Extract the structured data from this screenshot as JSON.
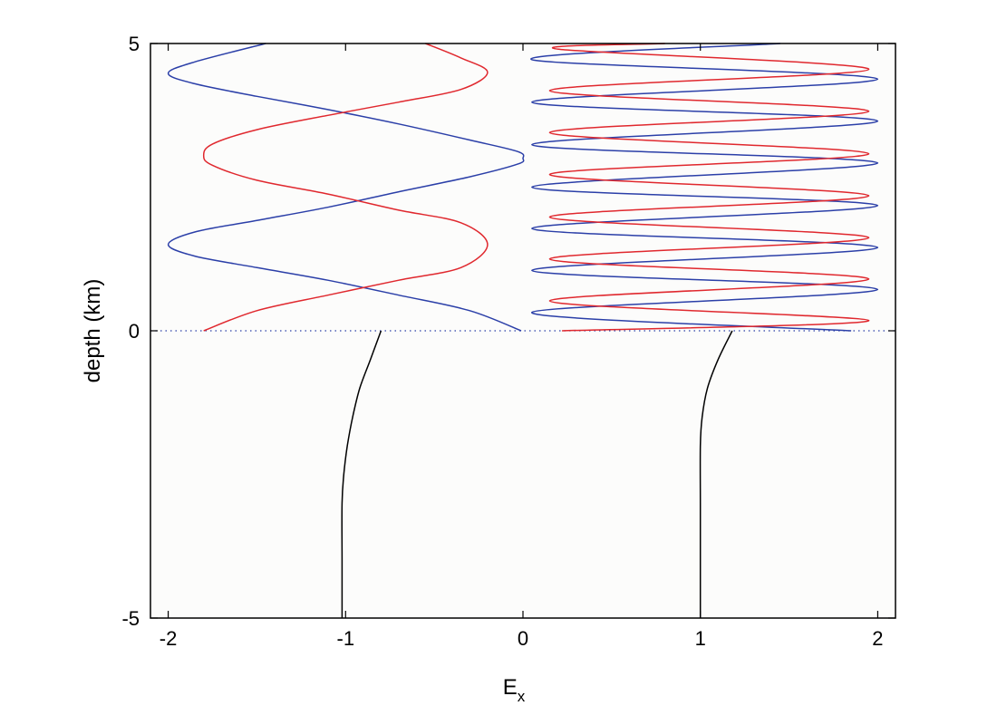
{
  "chart_data": {
    "type": "line",
    "title": "",
    "xlabel": "E",
    "xlabel_subscript": "x",
    "ylabel": "depth (km)",
    "xlim": [
      -2.1,
      2.1
    ],
    "ylim": [
      -5,
      5
    ],
    "xticks": [
      -2,
      -1,
      0,
      1,
      2
    ],
    "xtick_labels": [
      "-2",
      "-1",
      "0",
      "1",
      "2"
    ],
    "yticks": [
      -5,
      0,
      5
    ],
    "ytick_labels": [
      "-5",
      "0",
      "5"
    ],
    "grid": false,
    "legend": "none",
    "colors": {
      "blue": "#2b3fa8",
      "red": "#e0282e",
      "black": "#000000",
      "axes_bg": "#fcfcfb"
    },
    "reference_line": {
      "y": 0,
      "style": "dotted",
      "color": "#2b3fa8"
    },
    "series": [
      {
        "color": "#2b3fa8",
        "points": [
          [
            -0.01,
            0.0
          ],
          [
            -0.3,
            0.35
          ],
          [
            -0.7,
            0.62
          ],
          [
            -1.1,
            0.88
          ],
          [
            -1.5,
            1.1
          ],
          [
            -1.85,
            1.3
          ],
          [
            -2.0,
            1.5
          ],
          [
            -1.85,
            1.72
          ],
          [
            -1.5,
            1.92
          ],
          [
            -1.1,
            2.15
          ],
          [
            -0.7,
            2.42
          ],
          [
            -0.3,
            2.68
          ],
          [
            -0.03,
            2.9
          ],
          [
            0.0,
            3.0
          ],
          [
            -0.03,
            3.12
          ],
          [
            -0.3,
            3.32
          ],
          [
            -0.7,
            3.6
          ],
          [
            -1.1,
            3.85
          ],
          [
            -1.5,
            4.08
          ],
          [
            -1.85,
            4.3
          ],
          [
            -2.0,
            4.48
          ],
          [
            -1.85,
            4.68
          ],
          [
            -1.45,
            5.0
          ]
        ]
      },
      {
        "color": "#e0282e",
        "points": [
          [
            -1.8,
            0.0
          ],
          [
            -1.5,
            0.35
          ],
          [
            -1.1,
            0.62
          ],
          [
            -0.7,
            0.88
          ],
          [
            -0.35,
            1.1
          ],
          [
            -0.2,
            1.5
          ],
          [
            -0.35,
            1.88
          ],
          [
            -0.7,
            2.1
          ],
          [
            -1.1,
            2.38
          ],
          [
            -1.5,
            2.62
          ],
          [
            -1.75,
            2.88
          ],
          [
            -1.8,
            3.05
          ],
          [
            -1.75,
            3.25
          ],
          [
            -1.5,
            3.5
          ],
          [
            -1.1,
            3.75
          ],
          [
            -0.7,
            3.98
          ],
          [
            -0.35,
            4.2
          ],
          [
            -0.2,
            4.5
          ],
          [
            -0.35,
            4.75
          ],
          [
            -0.55,
            5.0
          ]
        ]
      },
      {
        "color": "#2b3fa8",
        "points": [
          [
            1.85,
            0.0
          ],
          [
            0.05,
            0.32
          ],
          [
            2.0,
            0.72
          ],
          [
            0.05,
            1.05
          ],
          [
            2.0,
            1.45
          ],
          [
            0.05,
            1.78
          ],
          [
            2.0,
            2.18
          ],
          [
            0.05,
            2.5
          ],
          [
            2.0,
            2.92
          ],
          [
            0.05,
            3.24
          ],
          [
            2.0,
            3.65
          ],
          [
            0.05,
            3.98
          ],
          [
            2.0,
            4.38
          ],
          [
            0.05,
            4.72
          ],
          [
            1.45,
            5.0
          ]
        ]
      },
      {
        "color": "#e0282e",
        "points": [
          [
            0.22,
            0.0
          ],
          [
            1.95,
            0.18
          ],
          [
            0.15,
            0.52
          ],
          [
            1.95,
            0.9
          ],
          [
            0.15,
            1.25
          ],
          [
            1.95,
            1.62
          ],
          [
            0.15,
            1.98
          ],
          [
            1.95,
            2.35
          ],
          [
            0.15,
            2.72
          ],
          [
            1.95,
            3.08
          ],
          [
            0.15,
            3.45
          ],
          [
            1.95,
            3.82
          ],
          [
            0.15,
            4.18
          ],
          [
            1.95,
            4.55
          ],
          [
            0.2,
            4.9
          ],
          [
            0.8,
            5.0
          ]
        ]
      },
      {
        "color": "#000000",
        "points": [
          [
            -0.8,
            0.0
          ],
          [
            -0.86,
            -0.5
          ],
          [
            -0.92,
            -1.0
          ],
          [
            -0.96,
            -1.5
          ],
          [
            -0.99,
            -2.0
          ],
          [
            -1.01,
            -2.5
          ],
          [
            -1.02,
            -3.0
          ],
          [
            -1.02,
            -4.0
          ],
          [
            -1.02,
            -5.0
          ]
        ]
      },
      {
        "color": "#000000",
        "points": [
          [
            1.18,
            0.0
          ],
          [
            1.1,
            -0.5
          ],
          [
            1.04,
            -1.0
          ],
          [
            1.01,
            -1.5
          ],
          [
            1.0,
            -2.0
          ],
          [
            1.0,
            -3.0
          ],
          [
            1.0,
            -4.0
          ],
          [
            1.0,
            -5.0
          ]
        ]
      }
    ]
  }
}
